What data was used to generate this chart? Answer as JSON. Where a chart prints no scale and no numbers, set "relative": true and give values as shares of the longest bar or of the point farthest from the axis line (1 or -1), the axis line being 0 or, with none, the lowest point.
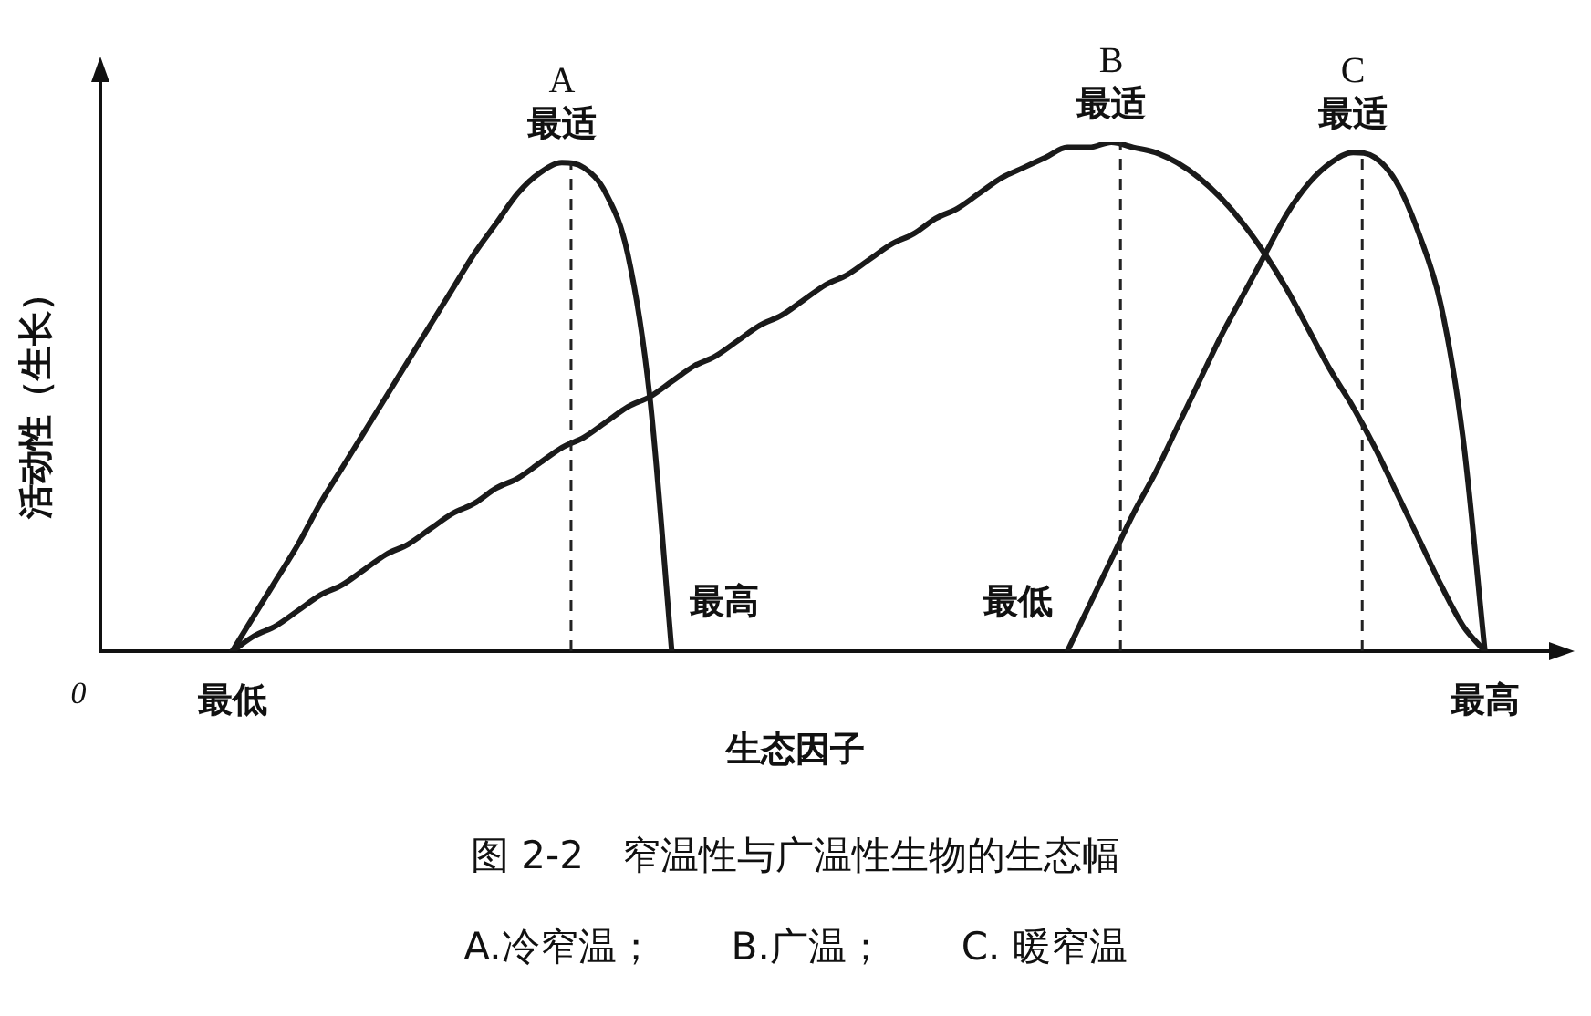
{
  "chart_data": {
    "type": "line",
    "relative": true,
    "title": "图 2-2　窄温性与广温性生物的生态幅",
    "subtitle": "A.冷窄温；　　B.广温；　　C. 暖窄温",
    "xlabel": "生态因子",
    "ylabel": "活动性（生长）",
    "legend": false,
    "grid": false,
    "marker": "none",
    "line_style": "solid",
    "categories": [
      null,
      null,
      null,
      null,
      null,
      null,
      null,
      null,
      null,
      null,
      null,
      null,
      null,
      null,
      null,
      null,
      null,
      null,
      null,
      null,
      null,
      null,
      null,
      null,
      null,
      null,
      null,
      null,
      null,
      null,
      null,
      null,
      null,
      null,
      null,
      null,
      null,
      null,
      null,
      null,
      null,
      null,
      null,
      null,
      null,
      null,
      null,
      null,
      null,
      null,
      null,
      null,
      null,
      null,
      null,
      null,
      null,
      null,
      null,
      null,
      null,
      null,
      null,
      null,
      null,
      null,
      null
    ],
    "series": [
      {
        "name": "A",
        "color": "#1a1a1a",
        "values": [
          null,
          null,
          null,
          null,
          null,
          null,
          0,
          0.07,
          0.14,
          0.21,
          0.29,
          0.36,
          0.43,
          0.5,
          0.57,
          0.64,
          0.71,
          0.78,
          0.84,
          0.9,
          0.94,
          0.96,
          0.95,
          0.9,
          0.78,
          0.5,
          0,
          null,
          null,
          null,
          null,
          null,
          null,
          null,
          null,
          null,
          null,
          null,
          null,
          null,
          null,
          null,
          null,
          null,
          null,
          null,
          null,
          null,
          null,
          null,
          null,
          null,
          null,
          null,
          null,
          null,
          null,
          null,
          null,
          null,
          null,
          null,
          null,
          null,
          null,
          null,
          null
        ]
      },
      {
        "name": "B",
        "color": "#1a1a1a",
        "values": [
          null,
          null,
          null,
          null,
          null,
          null,
          0,
          0.03,
          0.05,
          0.08,
          0.11,
          0.13,
          0.16,
          0.19,
          0.21,
          0.24,
          0.27,
          0.29,
          0.32,
          0.34,
          0.37,
          0.4,
          0.42,
          0.45,
          0.48,
          0.5,
          0.53,
          0.56,
          0.58,
          0.61,
          0.64,
          0.66,
          0.69,
          0.72,
          0.74,
          0.77,
          0.8,
          0.82,
          0.85,
          0.87,
          0.9,
          0.93,
          0.95,
          0.97,
          0.99,
          0.99,
          1,
          0.99,
          0.98,
          0.96,
          0.93,
          0.89,
          0.84,
          0.78,
          0.71,
          0.63,
          0.55,
          0.48,
          0.4,
          0.31,
          0.22,
          0.13,
          0.05,
          0,
          null,
          null,
          null
        ]
      },
      {
        "name": "C",
        "color": "#1a1a1a",
        "values": [
          null,
          null,
          null,
          null,
          null,
          null,
          null,
          null,
          null,
          null,
          null,
          null,
          null,
          null,
          null,
          null,
          null,
          null,
          null,
          null,
          null,
          null,
          null,
          null,
          null,
          null,
          null,
          null,
          null,
          null,
          null,
          null,
          null,
          null,
          null,
          null,
          null,
          null,
          null,
          null,
          null,
          null,
          null,
          null,
          0,
          0.09,
          0.18,
          0.27,
          0.35,
          0.44,
          0.53,
          0.62,
          0.7,
          0.78,
          0.86,
          0.92,
          0.96,
          0.98,
          0.97,
          0.92,
          0.82,
          0.68,
          0.42,
          0,
          null,
          null,
          null
        ]
      }
    ],
    "annotations": [
      "0",
      "最低",
      "最高",
      "最低",
      "最高",
      "最适",
      "最适",
      "最适"
    ]
  }
}
